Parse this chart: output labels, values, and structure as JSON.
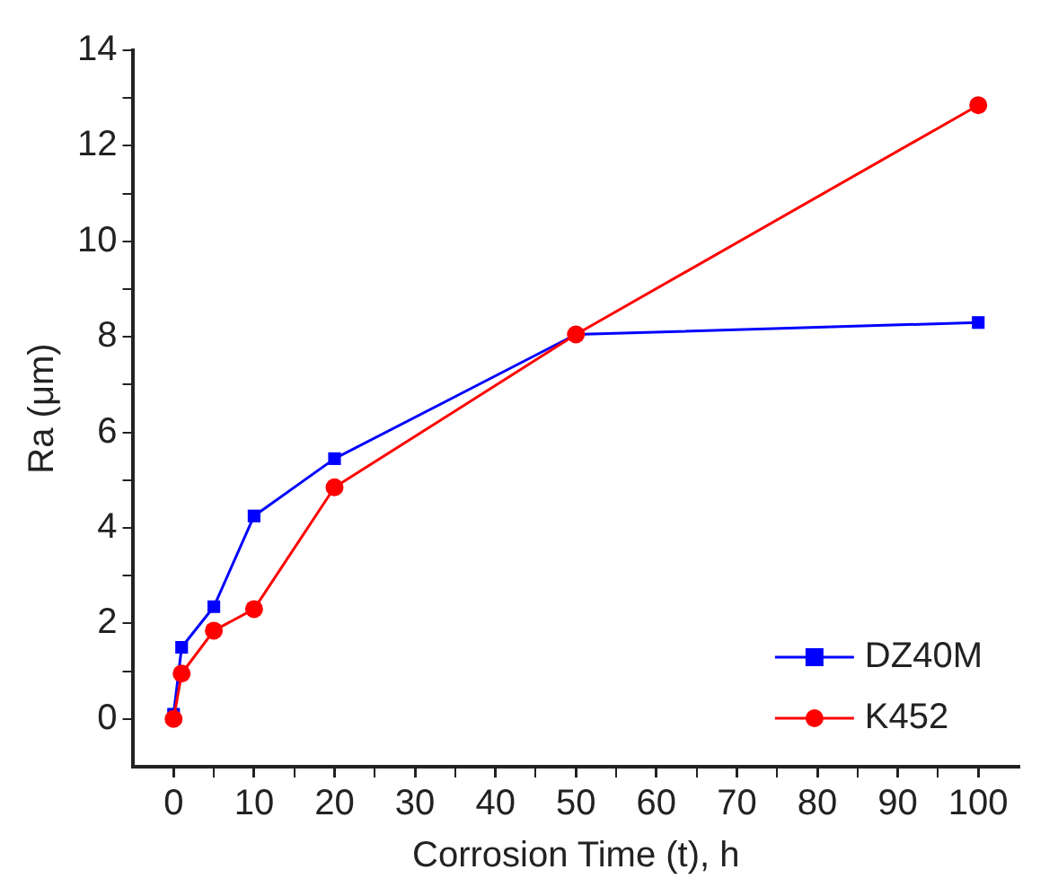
{
  "chart_data": {
    "type": "line",
    "xlabel": "Corrosion Time (t), h",
    "ylabel": "Ra (μm)",
    "x": [
      0,
      1,
      5,
      10,
      20,
      50,
      100
    ],
    "series": [
      {
        "name": "DZ40M",
        "color": "#0000ff",
        "marker": "square",
        "values": [
          0.1,
          1.5,
          2.35,
          4.25,
          5.45,
          8.05,
          8.3
        ]
      },
      {
        "name": "K452",
        "color": "#ff0000",
        "marker": "circle",
        "values": [
          0,
          0.95,
          1.85,
          2.3,
          4.85,
          8.05,
          12.85
        ]
      }
    ],
    "xlim": [
      -5,
      105
    ],
    "xticks": [
      0,
      {
        "value": 5,
        "label": null
      },
      10,
      {
        "value": 15,
        "label": null
      },
      20,
      {
        "value": 25,
        "label": null
      },
      30,
      {
        "value": 35,
        "label": null
      },
      40,
      {
        "value": 45,
        "label": null
      },
      50,
      {
        "value": 55,
        "label": null
      },
      60,
      {
        "value": 65,
        "label": null
      },
      70,
      {
        "value": 75,
        "label": null
      },
      80,
      {
        "value": 85,
        "label": null
      },
      90,
      {
        "value": 95,
        "label": null
      },
      100
    ],
    "ylim": [
      -1,
      14
    ],
    "yticks": [
      0,
      {
        "value": 1,
        "label": null
      },
      2,
      {
        "value": 3,
        "label": null
      },
      4,
      {
        "value": 5,
        "label": null
      },
      6,
      {
        "value": 7,
        "label": null
      },
      8,
      {
        "value": 9,
        "label": null
      },
      10,
      {
        "value": 11,
        "label": null
      },
      12,
      {
        "value": 13,
        "label": null
      },
      14
    ],
    "grid": false,
    "legend": "bottom right",
    "line_style": "solid"
  }
}
